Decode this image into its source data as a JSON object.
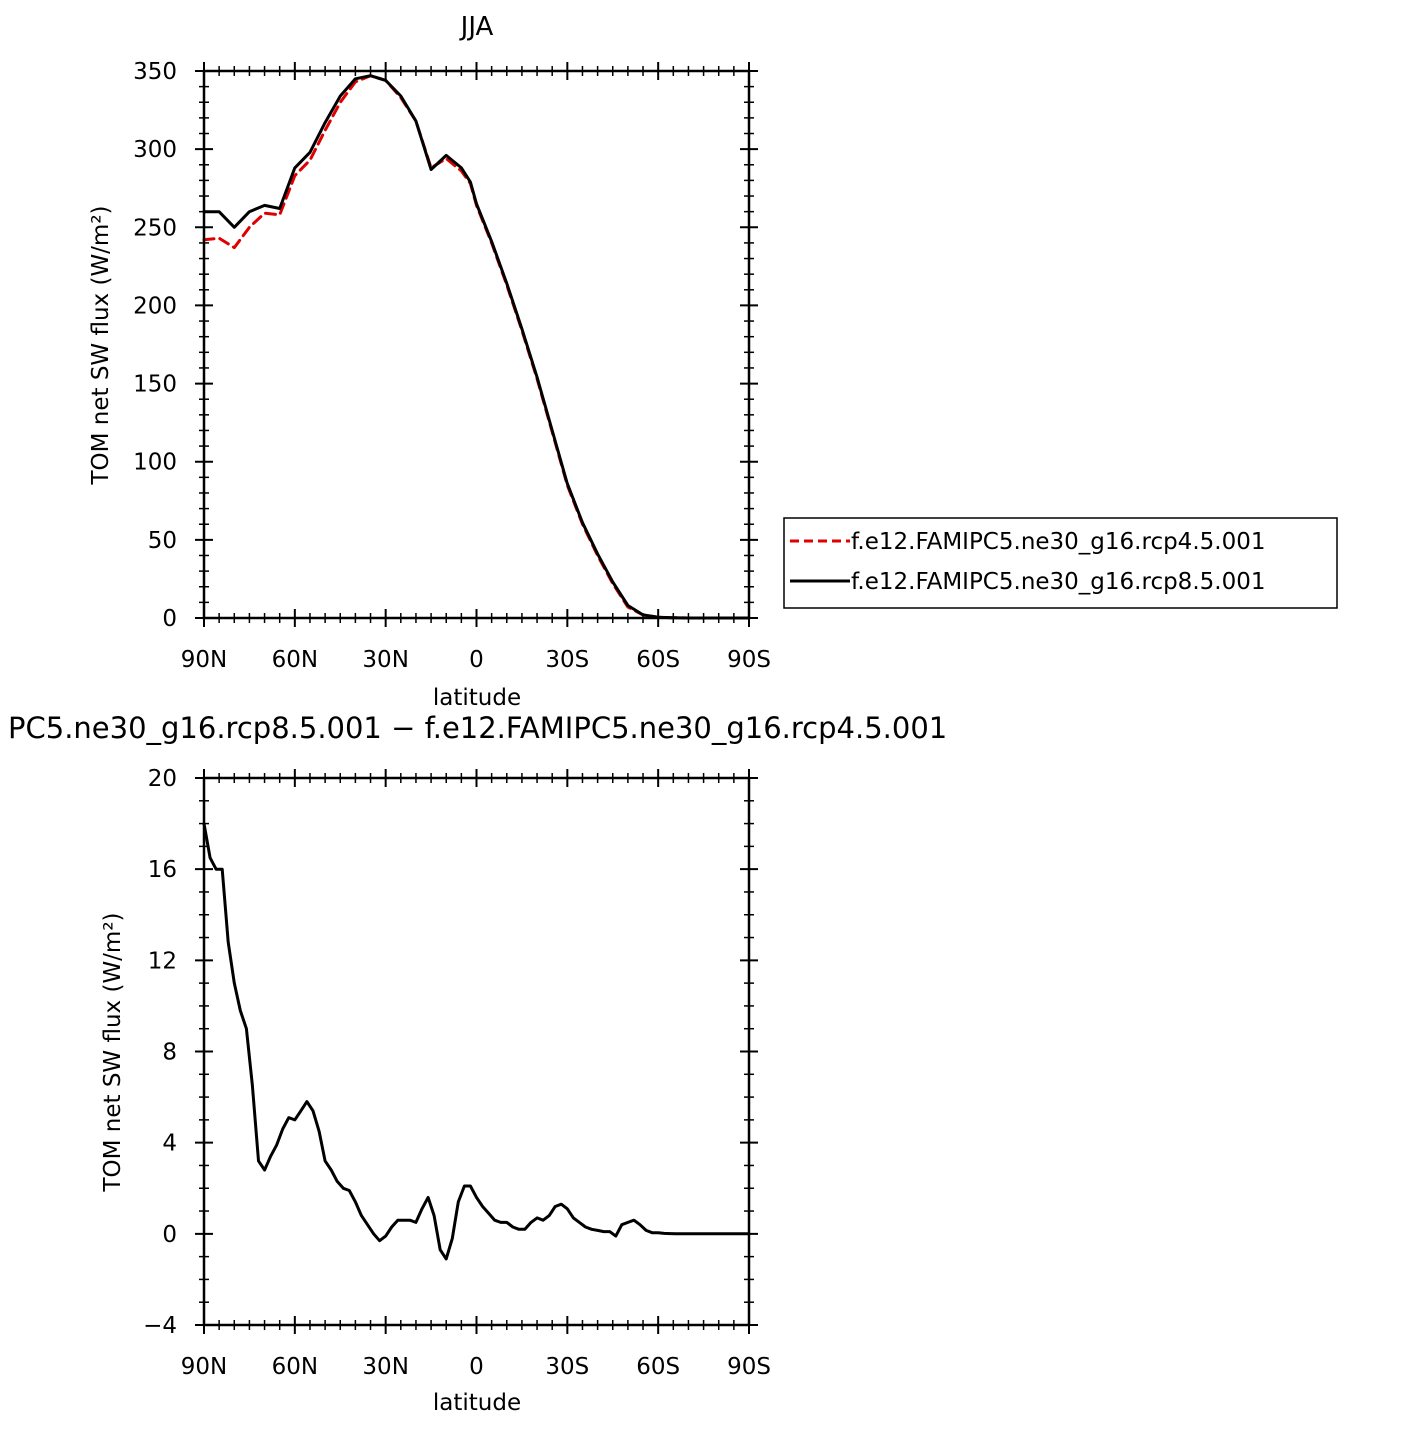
{
  "chart_data": [
    {
      "type": "line",
      "title": "JJA",
      "xlabel": "latitude",
      "ylabel": "TOM net SW flux (W/m²)",
      "xlim": [
        90,
        -90
      ],
      "ylim": [
        0,
        350
      ],
      "x_ticks": [
        90,
        60,
        30,
        0,
        -30,
        -60,
        -90
      ],
      "x_tick_labels": [
        "90N",
        "60N",
        "30N",
        "0",
        "30S",
        "60S",
        "90S"
      ],
      "y_ticks": [
        0,
        50,
        100,
        150,
        200,
        250,
        300,
        350
      ],
      "y_tick_labels": [
        "0",
        "50",
        "100",
        "150",
        "200",
        "250",
        "300",
        "350"
      ],
      "legend_position": "outside-right",
      "series": [
        {
          "name": "f.e12.FAMIPC5.ne30_g16.rcp4.5.001",
          "color": "#e00000",
          "dash": "dashed",
          "x": [
            90,
            85,
            80,
            75,
            70,
            65,
            60,
            55,
            50,
            45,
            40,
            35,
            30,
            25,
            20,
            15,
            10,
            5,
            2,
            0,
            -5,
            -10,
            -15,
            -20,
            -25,
            -30,
            -35,
            -40,
            -45,
            -50,
            -55,
            -60,
            -65,
            -70,
            -75,
            -80,
            -85,
            -90
          ],
          "y": [
            242,
            243,
            237,
            250,
            259,
            258,
            283,
            293,
            312,
            330,
            343,
            347,
            344,
            333,
            318,
            288,
            294,
            286,
            278,
            264,
            240,
            213,
            184,
            153,
            119,
            85,
            60,
            40,
            22,
            7,
            2,
            0.5,
            0.2,
            0,
            0,
            0,
            0,
            0
          ]
        },
        {
          "name": "f.e12.FAMIPC5.ne30_g16.rcp8.5.001",
          "color": "#000000",
          "dash": "solid",
          "x": [
            90,
            85,
            80,
            75,
            70,
            65,
            60,
            55,
            50,
            45,
            40,
            35,
            30,
            25,
            20,
            15,
            10,
            5,
            2,
            0,
            -5,
            -10,
            -15,
            -20,
            -25,
            -30,
            -35,
            -40,
            -45,
            -50,
            -55,
            -60,
            -65,
            -70,
            -75,
            -80,
            -85,
            -90
          ],
          "y": [
            260,
            260,
            250,
            260,
            264,
            262,
            288,
            298,
            317,
            334,
            345,
            347,
            344,
            334,
            318,
            287,
            296,
            288,
            279,
            265,
            241,
            214,
            185,
            154,
            120,
            86,
            61,
            41,
            23,
            8,
            2,
            0.5,
            0.2,
            0,
            0,
            0,
            0,
            0
          ]
        }
      ]
    },
    {
      "type": "line",
      "title": "PC5.ne30_g16.rcp8.5.001 − f.e12.FAMIPC5.ne30_g16.rcp4.5.001",
      "xlabel": "latitude",
      "ylabel": "TOM net SW flux (W/m²)",
      "xlim": [
        90,
        -90
      ],
      "ylim": [
        -4,
        20
      ],
      "x_ticks": [
        90,
        60,
        30,
        0,
        -30,
        -60,
        -90
      ],
      "x_tick_labels": [
        "90N",
        "60N",
        "30N",
        "0",
        "30S",
        "60S",
        "90S"
      ],
      "y_ticks": [
        -4,
        0,
        4,
        8,
        12,
        16,
        20
      ],
      "y_tick_labels": [
        "−4",
        "0",
        "4",
        "8",
        "12",
        "16",
        "20"
      ],
      "series": [
        {
          "color": "#000000",
          "dash": "solid",
          "x": [
            90,
            88,
            86,
            84,
            82,
            80,
            78,
            76,
            74,
            72,
            70,
            68,
            66,
            64,
            62,
            60,
            58,
            56,
            54,
            52,
            50,
            48,
            46,
            44,
            42,
            40,
            38,
            36,
            34,
            32,
            30,
            28,
            26,
            24,
            22,
            20,
            18,
            16,
            14,
            12,
            10,
            8,
            6,
            4,
            2,
            0,
            -2,
            -4,
            -6,
            -8,
            -10,
            -12,
            -14,
            -16,
            -18,
            -20,
            -22,
            -24,
            -26,
            -28,
            -30,
            -32,
            -34,
            -36,
            -38,
            -40,
            -42,
            -44,
            -46,
            -48,
            -50,
            -52,
            -54,
            -56,
            -58,
            -60,
            -62,
            -64,
            -66,
            -68,
            -70,
            -75,
            -80,
            -85,
            -90
          ],
          "y": [
            18,
            16.5,
            16,
            16,
            12.8,
            11,
            9.8,
            9,
            6.5,
            3.2,
            2.8,
            3.4,
            3.9,
            4.6,
            5.1,
            5,
            5.4,
            5.8,
            5.4,
            4.5,
            3.2,
            2.8,
            2.3,
            2,
            1.9,
            1.4,
            0.8,
            0.4,
            0,
            -0.3,
            -0.1,
            0.3,
            0.6,
            0.6,
            0.6,
            0.5,
            1.1,
            1.6,
            0.8,
            -0.7,
            -1.1,
            -0.2,
            1.4,
            2.1,
            2.1,
            1.6,
            1.2,
            0.9,
            0.6,
            0.5,
            0.5,
            0.3,
            0.2,
            0.2,
            0.5,
            0.7,
            0.6,
            0.8,
            1.2,
            1.3,
            1.1,
            0.7,
            0.5,
            0.3,
            0.2,
            0.15,
            0.1,
            0.1,
            -0.1,
            0.4,
            0.5,
            0.6,
            0.4,
            0.15,
            0.05,
            0.05,
            0.02,
            0.01,
            0,
            0,
            0,
            0,
            0,
            0,
            0
          ]
        }
      ]
    }
  ]
}
